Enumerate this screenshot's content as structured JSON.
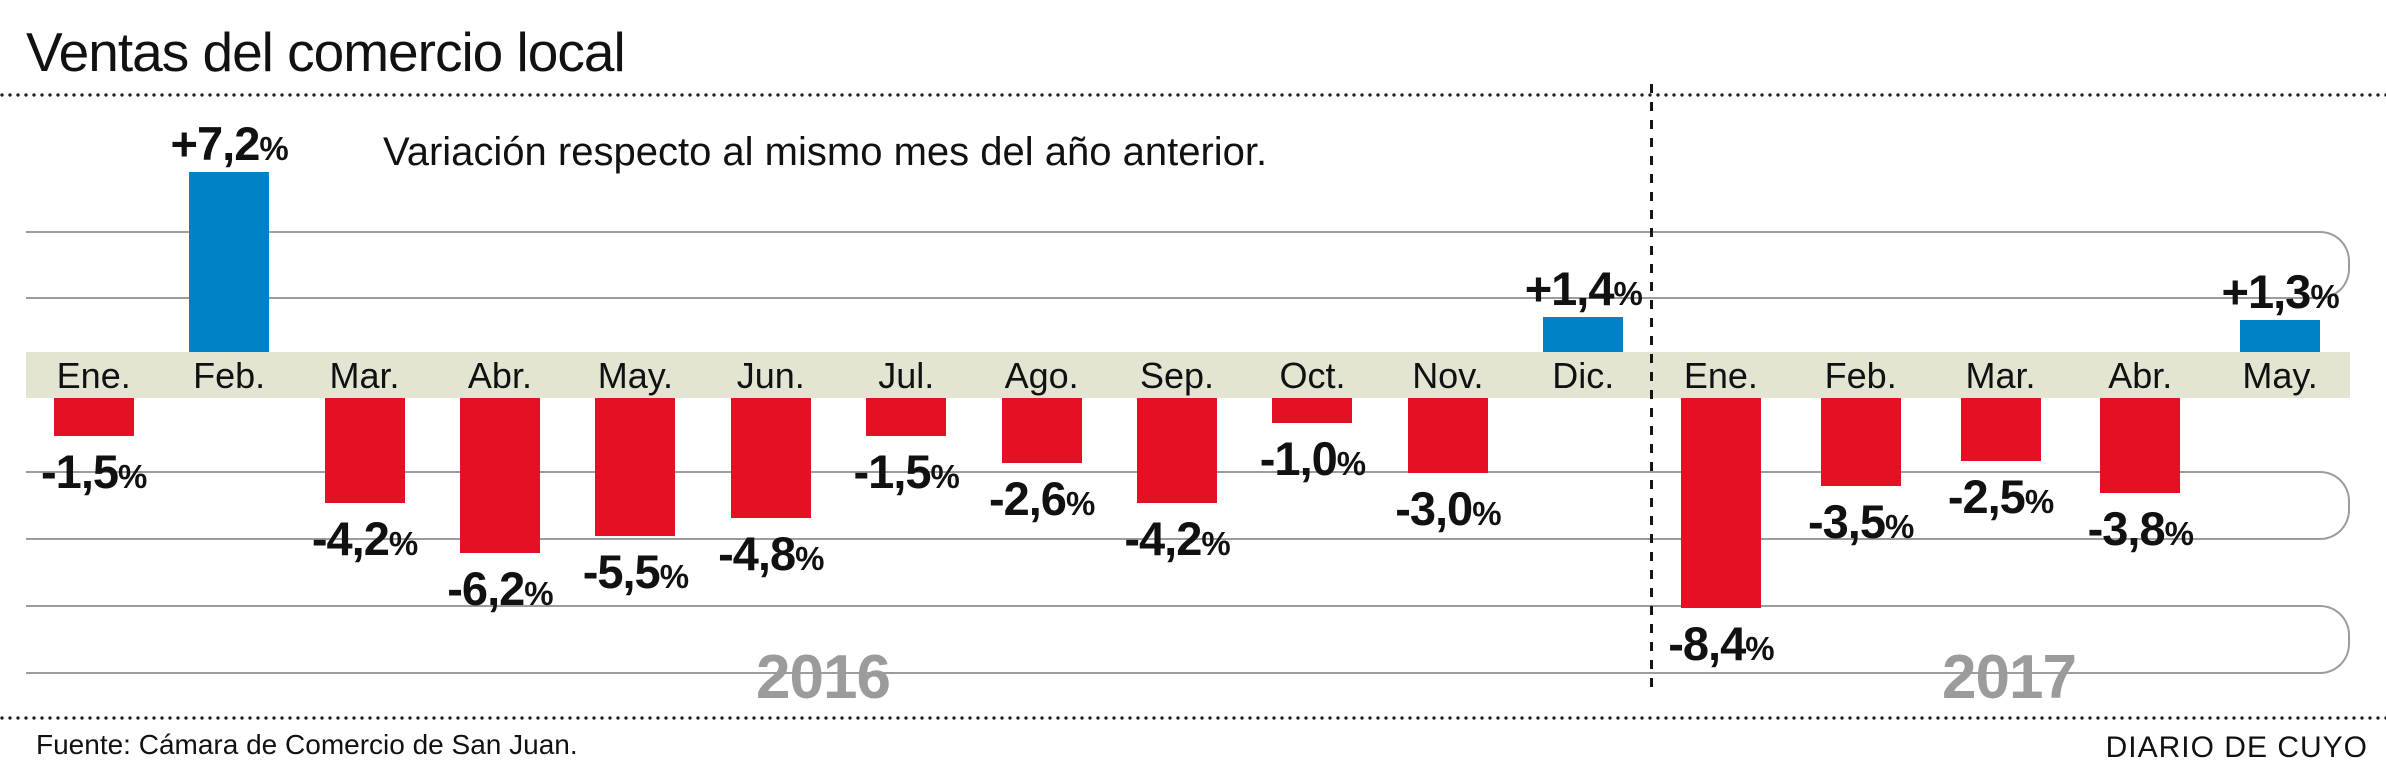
{
  "chart_data": {
    "type": "bar",
    "title": "Ventas del comercio local",
    "subtitle": "Variación respecto al mismo mes del año anterior.",
    "unit": "%",
    "ylim": [
      -8.4,
      7.2
    ],
    "legend": "none",
    "grid": "horizontal rounded tracks",
    "series": [
      {
        "year": "2016",
        "categories": [
          "Ene.",
          "Feb.",
          "Mar.",
          "Abr.",
          "May.",
          "Jun.",
          "Jul.",
          "Ago.",
          "Sep.",
          "Oct.",
          "Nov.",
          "Dic."
        ],
        "values": [
          -1.5,
          7.2,
          -4.2,
          -6.2,
          -5.5,
          -4.8,
          -1.5,
          -2.6,
          -4.2,
          -1.0,
          -3.0,
          1.4
        ],
        "labels": [
          "-1,5%",
          "+7,2%",
          "-4,2%",
          "-6,2%",
          "-5,5%",
          "-4,8%",
          "-1,5%",
          "-2,6%",
          "-4,2%",
          "-1,0%",
          "-3,0%",
          "+1,4%"
        ]
      },
      {
        "year": "2017",
        "categories": [
          "Ene.",
          "Feb.",
          "Mar.",
          "Abr.",
          "May."
        ],
        "values": [
          -8.4,
          -3.5,
          -2.5,
          -3.8,
          1.3
        ],
        "labels": [
          "-8,4%",
          "-3,5%",
          "-2,5%",
          "-3,8%",
          "+1,3%"
        ]
      }
    ],
    "colors": {
      "positive_bar": "#0082c6",
      "negative_bar": "#e31123",
      "axis_band": "#e4e4d3",
      "gridline": "#9c9c9c",
      "year_label": "#9b9b9b",
      "text": "#111111"
    }
  },
  "footer": {
    "source": "Fuente: Cámara de Comercio de San Juan.",
    "credit": "DIARIO DE CUYO"
  }
}
